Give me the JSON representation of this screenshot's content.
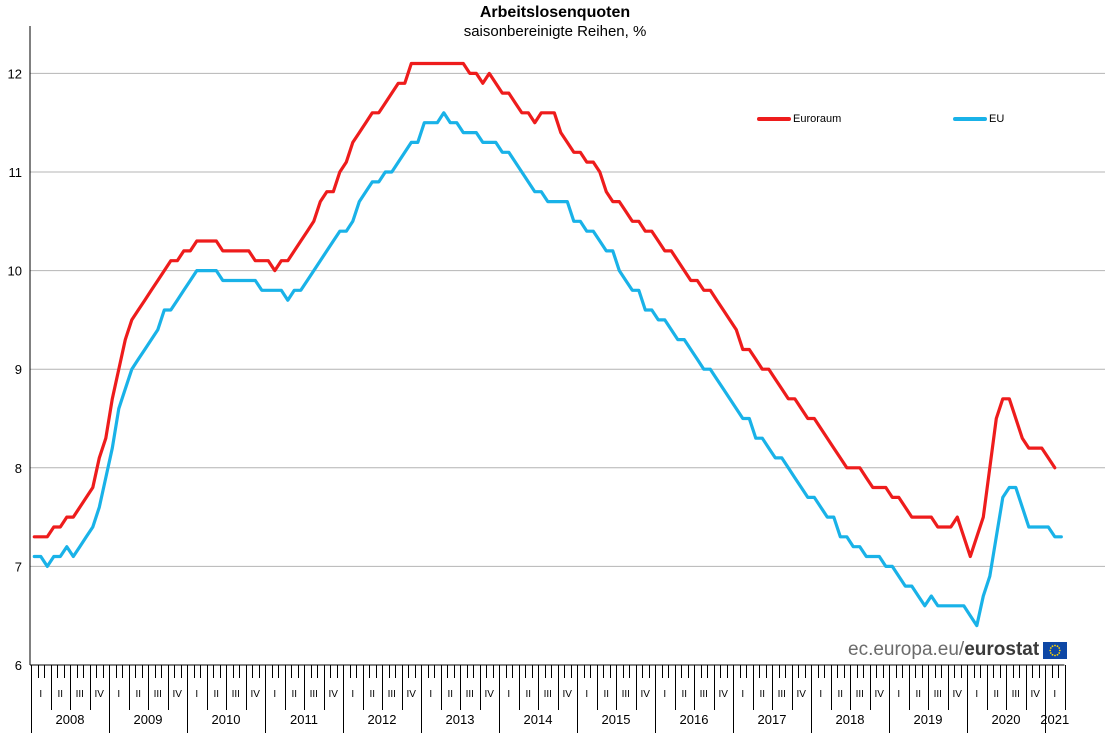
{
  "colors": {
    "euroraum": "#ee1c1c",
    "eu": "#19b2e8",
    "grid": "#b4b4b4",
    "axis": "#000000",
    "flag": "#0e47a5",
    "flag_stars": "#ffd700"
  },
  "brand": {
    "prefix": "ec.europa.eu/",
    "name": "eurostat"
  },
  "chart_data": {
    "type": "line",
    "title": "Arbeitslosenquoten",
    "subtitle": "saisonbereinigte Reihen, %",
    "xlabel": "",
    "ylabel": "",
    "ylim": [
      6,
      12.5
    ],
    "yticks": [
      6,
      7,
      8,
      9,
      10,
      11,
      12
    ],
    "grid": true,
    "legend_position": "top-right",
    "x_start": "2008-01",
    "x_end": "2021-02",
    "years": [
      "2008",
      "2009",
      "2010",
      "2011",
      "2012",
      "2013",
      "2014",
      "2015",
      "2016",
      "2017",
      "2018",
      "2019",
      "2020",
      "2021"
    ],
    "quarters": [
      "I",
      "II",
      "III",
      "IV"
    ],
    "series": [
      {
        "name": "Euroraum",
        "color": "#ee1c1c",
        "values": [
          7.3,
          7.3,
          7.3,
          7.4,
          7.4,
          7.5,
          7.5,
          7.6,
          7.7,
          7.8,
          8.1,
          8.3,
          8.7,
          9.0,
          9.3,
          9.5,
          9.6,
          9.7,
          9.8,
          9.9,
          10.0,
          10.1,
          10.1,
          10.2,
          10.2,
          10.3,
          10.3,
          10.3,
          10.3,
          10.2,
          10.2,
          10.2,
          10.2,
          10.2,
          10.1,
          10.1,
          10.1,
          10.0,
          10.1,
          10.1,
          10.2,
          10.3,
          10.4,
          10.5,
          10.7,
          10.8,
          10.8,
          11.0,
          11.1,
          11.3,
          11.4,
          11.5,
          11.6,
          11.6,
          11.7,
          11.8,
          11.9,
          11.9,
          12.1,
          12.1,
          12.1,
          12.1,
          12.1,
          12.1,
          12.1,
          12.1,
          12.1,
          12.0,
          12.0,
          11.9,
          12.0,
          11.9,
          11.8,
          11.8,
          11.7,
          11.6,
          11.6,
          11.5,
          11.6,
          11.6,
          11.6,
          11.4,
          11.3,
          11.2,
          11.2,
          11.1,
          11.1,
          11.0,
          10.8,
          10.7,
          10.7,
          10.6,
          10.5,
          10.5,
          10.4,
          10.4,
          10.3,
          10.2,
          10.2,
          10.1,
          10.0,
          9.9,
          9.9,
          9.8,
          9.8,
          9.7,
          9.6,
          9.5,
          9.4,
          9.2,
          9.2,
          9.1,
          9.0,
          9.0,
          8.9,
          8.8,
          8.7,
          8.7,
          8.6,
          8.5,
          8.5,
          8.4,
          8.3,
          8.2,
          8.1,
          8.0,
          8.0,
          8.0,
          7.9,
          7.8,
          7.8,
          7.8,
          7.7,
          7.7,
          7.6,
          7.5,
          7.5,
          7.5,
          7.5,
          7.4,
          7.4,
          7.4,
          7.5,
          7.3,
          7.1,
          7.3,
          7.5,
          8.0,
          8.5,
          8.7,
          8.7,
          8.5,
          8.3,
          8.2,
          8.2,
          8.2,
          8.1,
          8.0
        ]
      },
      {
        "name": "EU",
        "color": "#19b2e8",
        "values": [
          7.1,
          7.1,
          7.0,
          7.1,
          7.1,
          7.2,
          7.1,
          7.2,
          7.3,
          7.4,
          7.6,
          7.9,
          8.2,
          8.6,
          8.8,
          9.0,
          9.1,
          9.2,
          9.3,
          9.4,
          9.6,
          9.6,
          9.7,
          9.8,
          9.9,
          10.0,
          10.0,
          10.0,
          10.0,
          9.9,
          9.9,
          9.9,
          9.9,
          9.9,
          9.9,
          9.8,
          9.8,
          9.8,
          9.8,
          9.7,
          9.8,
          9.8,
          9.9,
          10.0,
          10.1,
          10.2,
          10.3,
          10.4,
          10.4,
          10.5,
          10.7,
          10.8,
          10.9,
          10.9,
          11.0,
          11.0,
          11.1,
          11.2,
          11.3,
          11.3,
          11.5,
          11.5,
          11.5,
          11.6,
          11.5,
          11.5,
          11.4,
          11.4,
          11.4,
          11.3,
          11.3,
          11.3,
          11.2,
          11.2,
          11.1,
          11.0,
          10.9,
          10.8,
          10.8,
          10.7,
          10.7,
          10.7,
          10.7,
          10.5,
          10.5,
          10.4,
          10.4,
          10.3,
          10.2,
          10.2,
          10.0,
          9.9,
          9.8,
          9.8,
          9.6,
          9.6,
          9.5,
          9.5,
          9.4,
          9.3,
          9.3,
          9.2,
          9.1,
          9.0,
          9.0,
          8.9,
          8.8,
          8.7,
          8.6,
          8.5,
          8.5,
          8.3,
          8.3,
          8.2,
          8.1,
          8.1,
          8.0,
          7.9,
          7.8,
          7.7,
          7.7,
          7.6,
          7.5,
          7.5,
          7.3,
          7.3,
          7.2,
          7.2,
          7.1,
          7.1,
          7.1,
          7.0,
          7.0,
          6.9,
          6.8,
          6.8,
          6.7,
          6.6,
          6.7,
          6.6,
          6.6,
          6.6,
          6.6,
          6.6,
          6.5,
          6.4,
          6.7,
          6.9,
          7.3,
          7.7,
          7.8,
          7.8,
          7.6,
          7.4,
          7.4,
          7.4,
          7.4,
          7.3,
          7.3
        ]
      }
    ]
  }
}
